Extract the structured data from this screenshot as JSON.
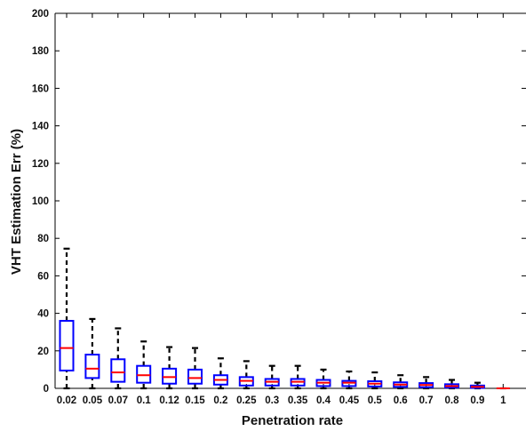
{
  "chart_data": {
    "type": "box",
    "xlabel": "Penetration rate",
    "ylabel": "VHT Estimation Err (%)",
    "ylim": [
      0,
      200
    ],
    "yticks": [
      0,
      20,
      40,
      60,
      80,
      100,
      120,
      140,
      160,
      180,
      200
    ],
    "grid": false,
    "categories": [
      "0.02",
      "0.05",
      "0.07",
      "0.1",
      "0.12",
      "0.15",
      "0.2",
      "0.25",
      "0.3",
      "0.35",
      "0.4",
      "0.45",
      "0.5",
      "0.6",
      "0.7",
      "0.8",
      "0.9",
      "1"
    ],
    "boxes": [
      {
        "category": "0.02",
        "min": 0,
        "q1": 9.5,
        "median": 21.5,
        "q3": 36,
        "max": 74.5
      },
      {
        "category": "0.05",
        "min": 0,
        "q1": 5.5,
        "median": 10.5,
        "q3": 18,
        "max": 37
      },
      {
        "category": "0.07",
        "min": 0,
        "q1": 3.5,
        "median": 8.5,
        "q3": 15.5,
        "max": 32
      },
      {
        "category": "0.1",
        "min": 0,
        "q1": 3,
        "median": 7,
        "q3": 12,
        "max": 25
      },
      {
        "category": "0.12",
        "min": 0,
        "q1": 2.5,
        "median": 6,
        "q3": 10.5,
        "max": 22
      },
      {
        "category": "0.15",
        "min": 0,
        "q1": 2.5,
        "median": 5.5,
        "q3": 10,
        "max": 21.5
      },
      {
        "category": "0.2",
        "min": 0,
        "q1": 2,
        "median": 4.5,
        "q3": 7,
        "max": 16
      },
      {
        "category": "0.25",
        "min": 0,
        "q1": 1.5,
        "median": 4,
        "q3": 6,
        "max": 14.5
      },
      {
        "category": "0.3",
        "min": 0,
        "q1": 1.5,
        "median": 3.5,
        "q3": 5,
        "max": 12
      },
      {
        "category": "0.35",
        "min": 0,
        "q1": 1.5,
        "median": 3.5,
        "q3": 5,
        "max": 12
      },
      {
        "category": "0.4",
        "min": 0,
        "q1": 1.2,
        "median": 3,
        "q3": 4.5,
        "max": 10
      },
      {
        "category": "0.45",
        "min": 0,
        "q1": 1.2,
        "median": 3,
        "q3": 4,
        "max": 9
      },
      {
        "category": "0.5",
        "min": 0,
        "q1": 1,
        "median": 2.5,
        "q3": 3.8,
        "max": 8.5
      },
      {
        "category": "0.6",
        "min": 0,
        "q1": 0.8,
        "median": 2,
        "q3": 3.2,
        "max": 7
      },
      {
        "category": "0.7",
        "min": 0,
        "q1": 0.6,
        "median": 1.8,
        "q3": 2.8,
        "max": 6
      },
      {
        "category": "0.8",
        "min": 0,
        "q1": 0.4,
        "median": 1.2,
        "q3": 2.2,
        "max": 4.5
      },
      {
        "category": "0.9",
        "min": 0,
        "q1": 0.2,
        "median": 0.8,
        "q3": 1.5,
        "max": 3
      },
      {
        "category": "1",
        "min": 0,
        "q1": 0,
        "median": 0,
        "q3": 0,
        "max": 0
      }
    ],
    "colors": {
      "box": "#0000ff",
      "median": "#ff0000",
      "whisker": "#000000",
      "axis": "#000000"
    }
  }
}
